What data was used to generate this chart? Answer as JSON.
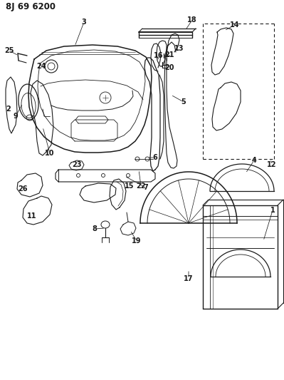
{
  "title": "8J 69 6200",
  "bg_color": "#ffffff",
  "line_color": "#1a1a1a",
  "title_fontsize": 8.5,
  "label_fontsize": 7,
  "figsize": [
    3.99,
    5.33
  ],
  "dpi": 100
}
